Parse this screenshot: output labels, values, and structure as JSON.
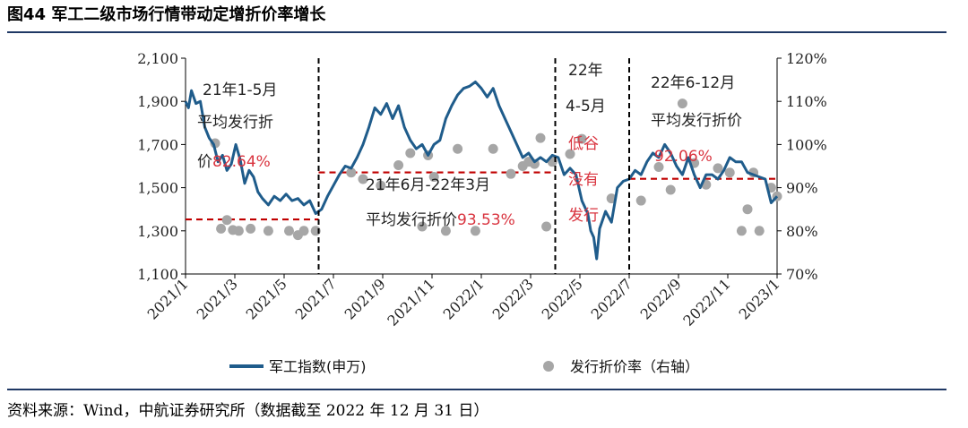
{
  "figure": {
    "title": "图44  军工二级市场行情带动定增折价率增长",
    "source": "资料来源：Wind，中航证券研究所（数据截至 2022 年 12 月 31 日）"
  },
  "chart_data": {
    "type": "line+scatter",
    "x_tick_labels": [
      "2021/1",
      "2021/3",
      "2021/5",
      "2021/7",
      "2021/9",
      "2021/11",
      "2022/1",
      "2022/3",
      "2022/5",
      "2022/7",
      "2022/9",
      "2022/11",
      "2023/1"
    ],
    "x_range": [
      2021.0,
      2023.0
    ],
    "left_axis": {
      "range": [
        1100,
        2100
      ],
      "ticks": [
        "1,100",
        "1,300",
        "1,500",
        "1,700",
        "1,900",
        "2,100"
      ],
      "tick_values": [
        1100,
        1300,
        1500,
        1700,
        1900,
        2100
      ]
    },
    "right_axis": {
      "range": [
        0.7,
        1.2
      ],
      "ticks": [
        "70%",
        "80%",
        "90%",
        "100%",
        "110%",
        "120%"
      ],
      "tick_values": [
        0.7,
        0.8,
        0.9,
        1.0,
        1.1,
        1.2
      ]
    },
    "line_series": {
      "name": "军工指数(申万)",
      "color": "#1f5c8b",
      "points": [
        [
          2021.0,
          1900
        ],
        [
          2021.01,
          1870
        ],
        [
          2021.02,
          1950
        ],
        [
          2021.035,
          1890
        ],
        [
          2021.05,
          1900
        ],
        [
          2021.065,
          1780
        ],
        [
          2021.08,
          1730
        ],
        [
          2021.095,
          1700
        ],
        [
          2021.11,
          1620
        ],
        [
          2021.125,
          1650
        ],
        [
          2021.14,
          1580
        ],
        [
          2021.155,
          1610
        ],
        [
          2021.17,
          1700
        ],
        [
          2021.185,
          1630
        ],
        [
          2021.2,
          1520
        ],
        [
          2021.215,
          1580
        ],
        [
          2021.23,
          1550
        ],
        [
          2021.245,
          1480
        ],
        [
          2021.26,
          1450
        ],
        [
          2021.28,
          1420
        ],
        [
          2021.3,
          1460
        ],
        [
          2021.32,
          1440
        ],
        [
          2021.34,
          1470
        ],
        [
          2021.36,
          1440
        ],
        [
          2021.38,
          1450
        ],
        [
          2021.4,
          1420
        ],
        [
          2021.42,
          1440
        ],
        [
          2021.44,
          1380
        ],
        [
          2021.46,
          1400
        ],
        [
          2021.48,
          1460
        ],
        [
          2021.5,
          1510
        ],
        [
          2021.52,
          1560
        ],
        [
          2021.54,
          1600
        ],
        [
          2021.56,
          1590
        ],
        [
          2021.58,
          1640
        ],
        [
          2021.6,
          1700
        ],
        [
          2021.62,
          1780
        ],
        [
          2021.64,
          1870
        ],
        [
          2021.66,
          1840
        ],
        [
          2021.68,
          1890
        ],
        [
          2021.7,
          1820
        ],
        [
          2021.72,
          1880
        ],
        [
          2021.74,
          1780
        ],
        [
          2021.76,
          1720
        ],
        [
          2021.78,
          1680
        ],
        [
          2021.8,
          1700
        ],
        [
          2021.82,
          1650
        ],
        [
          2021.84,
          1700
        ],
        [
          2021.86,
          1720
        ],
        [
          2021.88,
          1820
        ],
        [
          2021.9,
          1880
        ],
        [
          2021.92,
          1930
        ],
        [
          2021.94,
          1960
        ],
        [
          2021.96,
          1970
        ],
        [
          2021.98,
          1990
        ],
        [
          2022.0,
          1960
        ],
        [
          2022.02,
          1920
        ],
        [
          2022.04,
          1960
        ],
        [
          2022.06,
          1880
        ],
        [
          2022.08,
          1820
        ],
        [
          2022.1,
          1760
        ],
        [
          2022.12,
          1700
        ],
        [
          2022.14,
          1640
        ],
        [
          2022.16,
          1660
        ],
        [
          2022.18,
          1620
        ],
        [
          2022.2,
          1640
        ],
        [
          2022.22,
          1620
        ],
        [
          2022.24,
          1650
        ],
        [
          2022.26,
          1640
        ],
        [
          2022.28,
          1560
        ],
        [
          2022.3,
          1590
        ],
        [
          2022.32,
          1560
        ],
        [
          2022.34,
          1440
        ],
        [
          2022.36,
          1380
        ],
        [
          2022.37,
          1300
        ],
        [
          2022.38,
          1270
        ],
        [
          2022.39,
          1170
        ],
        [
          2022.4,
          1310
        ],
        [
          2022.42,
          1390
        ],
        [
          2022.44,
          1340
        ],
        [
          2022.46,
          1500
        ],
        [
          2022.48,
          1530
        ],
        [
          2022.5,
          1540
        ],
        [
          2022.52,
          1580
        ],
        [
          2022.54,
          1560
        ],
        [
          2022.56,
          1620
        ],
        [
          2022.58,
          1660
        ],
        [
          2022.6,
          1640
        ],
        [
          2022.62,
          1700
        ],
        [
          2022.64,
          1660
        ],
        [
          2022.66,
          1600
        ],
        [
          2022.68,
          1560
        ],
        [
          2022.7,
          1640
        ],
        [
          2022.72,
          1560
        ],
        [
          2022.74,
          1500
        ],
        [
          2022.76,
          1560
        ],
        [
          2022.78,
          1560
        ],
        [
          2022.8,
          1540
        ],
        [
          2022.82,
          1580
        ],
        [
          2022.84,
          1640
        ],
        [
          2022.86,
          1620
        ],
        [
          2022.88,
          1620
        ],
        [
          2022.9,
          1570
        ],
        [
          2022.92,
          1560
        ],
        [
          2022.94,
          1550
        ],
        [
          2022.96,
          1540
        ],
        [
          2022.98,
          1430
        ],
        [
          2023.0,
          1460
        ]
      ]
    },
    "scatter_series": {
      "name": "发行折价率（右轴）",
      "color": "#a6a6a6",
      "points": [
        [
          2021.1,
          1.003
        ],
        [
          2021.12,
          0.805
        ],
        [
          2021.14,
          0.825
        ],
        [
          2021.16,
          0.802
        ],
        [
          2021.18,
          0.8
        ],
        [
          2021.22,
          0.805
        ],
        [
          2021.28,
          0.8
        ],
        [
          2021.35,
          0.8
        ],
        [
          2021.38,
          0.79
        ],
        [
          2021.4,
          0.8
        ],
        [
          2021.44,
          0.8
        ],
        [
          2021.56,
          0.935
        ],
        [
          2021.6,
          0.92
        ],
        [
          2021.66,
          0.905
        ],
        [
          2021.72,
          0.952
        ],
        [
          2021.76,
          0.98
        ],
        [
          2021.8,
          0.81
        ],
        [
          2021.82,
          0.975
        ],
        [
          2021.84,
          0.925
        ],
        [
          2021.88,
          0.8
        ],
        [
          2021.92,
          0.99
        ],
        [
          2021.98,
          0.8
        ],
        [
          2022.04,
          0.99
        ],
        [
          2022.1,
          0.932
        ],
        [
          2022.14,
          0.95
        ],
        [
          2022.16,
          0.96
        ],
        [
          2022.18,
          0.955
        ],
        [
          2022.2,
          1.015
        ],
        [
          2022.22,
          0.81
        ],
        [
          2022.24,
          0.96
        ],
        [
          2022.3,
          0.978
        ],
        [
          2022.34,
          1.013
        ],
        [
          2022.44,
          0.875
        ],
        [
          2022.54,
          0.87
        ],
        [
          2022.6,
          0.948
        ],
        [
          2022.64,
          0.895
        ],
        [
          2022.68,
          1.095
        ],
        [
          2022.72,
          0.957
        ],
        [
          2022.76,
          0.907
        ],
        [
          2022.8,
          0.945
        ],
        [
          2022.84,
          0.935
        ],
        [
          2022.88,
          0.8
        ],
        [
          2022.9,
          0.85
        ],
        [
          2022.92,
          0.935
        ],
        [
          2022.94,
          0.8
        ],
        [
          2022.98,
          0.9
        ],
        [
          2023.0,
          0.88
        ]
      ]
    },
    "reference_lines": [
      {
        "from": 2021.0,
        "to": 2021.45,
        "value": 0.8264
      },
      {
        "from": 2021.45,
        "to": 2022.25,
        "value": 0.9353
      },
      {
        "from": 2022.5,
        "to": 2023.0,
        "value": 0.9206
      }
    ],
    "dividers": [
      2021.45,
      2022.25,
      2022.5
    ],
    "annotations": {
      "period1_line1": "21年1-5月",
      "period1_line2": "平均发行折",
      "period1_line3_prefix": "价",
      "period1_value": "82.64%",
      "period2_line1": "21年6月-22年3月",
      "period2_line2_prefix": "平均发行折价",
      "period2_value": "93.53%",
      "period3_chars": [
        "22年",
        "4-5月",
        "低谷",
        "没有",
        "发行"
      ],
      "period4_line1": "22年6-12月",
      "period4_line2": "平均发行折价",
      "period4_value": "92.06%"
    },
    "legend": {
      "line_label": "军工指数(申万)",
      "scatter_label": "发行折价率（右轴）"
    },
    "colors": {
      "line": "#1f5c8b",
      "scatter": "#a6a6a6",
      "reference": "#c00000",
      "highlight": "#d9343f"
    }
  }
}
